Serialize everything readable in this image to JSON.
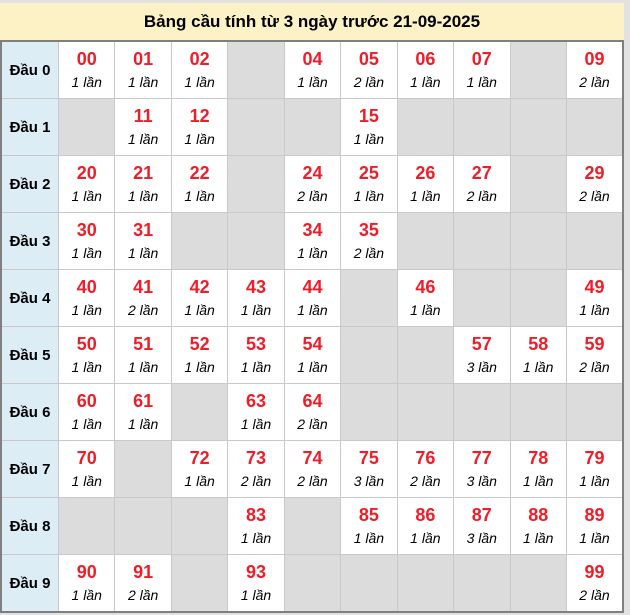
{
  "title": "Bảng cầu tính từ 3 ngày trước 21-09-2025",
  "colors": {
    "title_bg": "#fdf2c5",
    "label_bg": "#dcedf6",
    "empty_cell_bg": "#dcdcdc",
    "filled_cell_bg": "#ffffff",
    "number_red": "#ef1d27",
    "grid_line": "#c9c9c9",
    "outer_border": "#7f7f7f",
    "page_bg": "#e2e2e2"
  },
  "table": {
    "rows": [
      {
        "label": "Đầu 0",
        "cells": [
          {
            "n": "00",
            "c": "1 lần"
          },
          {
            "n": "01",
            "c": "1 lần"
          },
          {
            "n": "02",
            "c": "1 lần"
          },
          null,
          {
            "n": "04",
            "c": "1 lần"
          },
          {
            "n": "05",
            "c": "2 lần"
          },
          {
            "n": "06",
            "c": "1 lần"
          },
          {
            "n": "07",
            "c": "1 lần"
          },
          null,
          {
            "n": "09",
            "c": "2 lần"
          }
        ]
      },
      {
        "label": "Đầu 1",
        "cells": [
          null,
          {
            "n": "11",
            "c": "1 lần"
          },
          {
            "n": "12",
            "c": "1 lần"
          },
          null,
          null,
          {
            "n": "15",
            "c": "1 lần"
          },
          null,
          null,
          null,
          null
        ]
      },
      {
        "label": "Đầu 2",
        "cells": [
          {
            "n": "20",
            "c": "1 lần"
          },
          {
            "n": "21",
            "c": "1 lần"
          },
          {
            "n": "22",
            "c": "1 lần"
          },
          null,
          {
            "n": "24",
            "c": "2 lần"
          },
          {
            "n": "25",
            "c": "1 lần"
          },
          {
            "n": "26",
            "c": "1 lần"
          },
          {
            "n": "27",
            "c": "2 lần"
          },
          null,
          {
            "n": "29",
            "c": "2 lần"
          }
        ]
      },
      {
        "label": "Đầu 3",
        "cells": [
          {
            "n": "30",
            "c": "1 lần"
          },
          {
            "n": "31",
            "c": "1 lần"
          },
          null,
          null,
          {
            "n": "34",
            "c": "1 lần"
          },
          {
            "n": "35",
            "c": "2 lần"
          },
          null,
          null,
          null,
          null
        ]
      },
      {
        "label": "Đầu 4",
        "cells": [
          {
            "n": "40",
            "c": "1 lần"
          },
          {
            "n": "41",
            "c": "2 lần"
          },
          {
            "n": "42",
            "c": "1 lần"
          },
          {
            "n": "43",
            "c": "1 lần"
          },
          {
            "n": "44",
            "c": "1 lần"
          },
          null,
          {
            "n": "46",
            "c": "1 lần"
          },
          null,
          null,
          {
            "n": "49",
            "c": "1 lần"
          }
        ]
      },
      {
        "label": "Đầu 5",
        "cells": [
          {
            "n": "50",
            "c": "1 lần"
          },
          {
            "n": "51",
            "c": "1 lần"
          },
          {
            "n": "52",
            "c": "1 lần"
          },
          {
            "n": "53",
            "c": "1 lần"
          },
          {
            "n": "54",
            "c": "1 lần"
          },
          null,
          null,
          {
            "n": "57",
            "c": "3 lần"
          },
          {
            "n": "58",
            "c": "1 lần"
          },
          {
            "n": "59",
            "c": "2 lần"
          }
        ]
      },
      {
        "label": "Đầu 6",
        "cells": [
          {
            "n": "60",
            "c": "1 lần"
          },
          {
            "n": "61",
            "c": "1 lần"
          },
          null,
          {
            "n": "63",
            "c": "1 lần"
          },
          {
            "n": "64",
            "c": "2 lần"
          },
          null,
          null,
          null,
          null,
          null
        ]
      },
      {
        "label": "Đầu 7",
        "cells": [
          {
            "n": "70",
            "c": "1 lần"
          },
          null,
          {
            "n": "72",
            "c": "1 lần"
          },
          {
            "n": "73",
            "c": "2 lần"
          },
          {
            "n": "74",
            "c": "2 lần"
          },
          {
            "n": "75",
            "c": "3 lần"
          },
          {
            "n": "76",
            "c": "2 lần"
          },
          {
            "n": "77",
            "c": "3 lần"
          },
          {
            "n": "78",
            "c": "1 lần"
          },
          {
            "n": "79",
            "c": "1 lần"
          }
        ]
      },
      {
        "label": "Đầu 8",
        "cells": [
          null,
          null,
          null,
          {
            "n": "83",
            "c": "1 lần"
          },
          null,
          {
            "n": "85",
            "c": "1 lần"
          },
          {
            "n": "86",
            "c": "1 lần"
          },
          {
            "n": "87",
            "c": "3 lần"
          },
          {
            "n": "88",
            "c": "1 lần"
          },
          {
            "n": "89",
            "c": "1 lần"
          }
        ]
      },
      {
        "label": "Đầu 9",
        "cells": [
          {
            "n": "90",
            "c": "1 lần"
          },
          {
            "n": "91",
            "c": "2 lần"
          },
          null,
          {
            "n": "93",
            "c": "1 lần"
          },
          null,
          null,
          null,
          null,
          null,
          {
            "n": "99",
            "c": "2 lần"
          }
        ]
      }
    ]
  }
}
